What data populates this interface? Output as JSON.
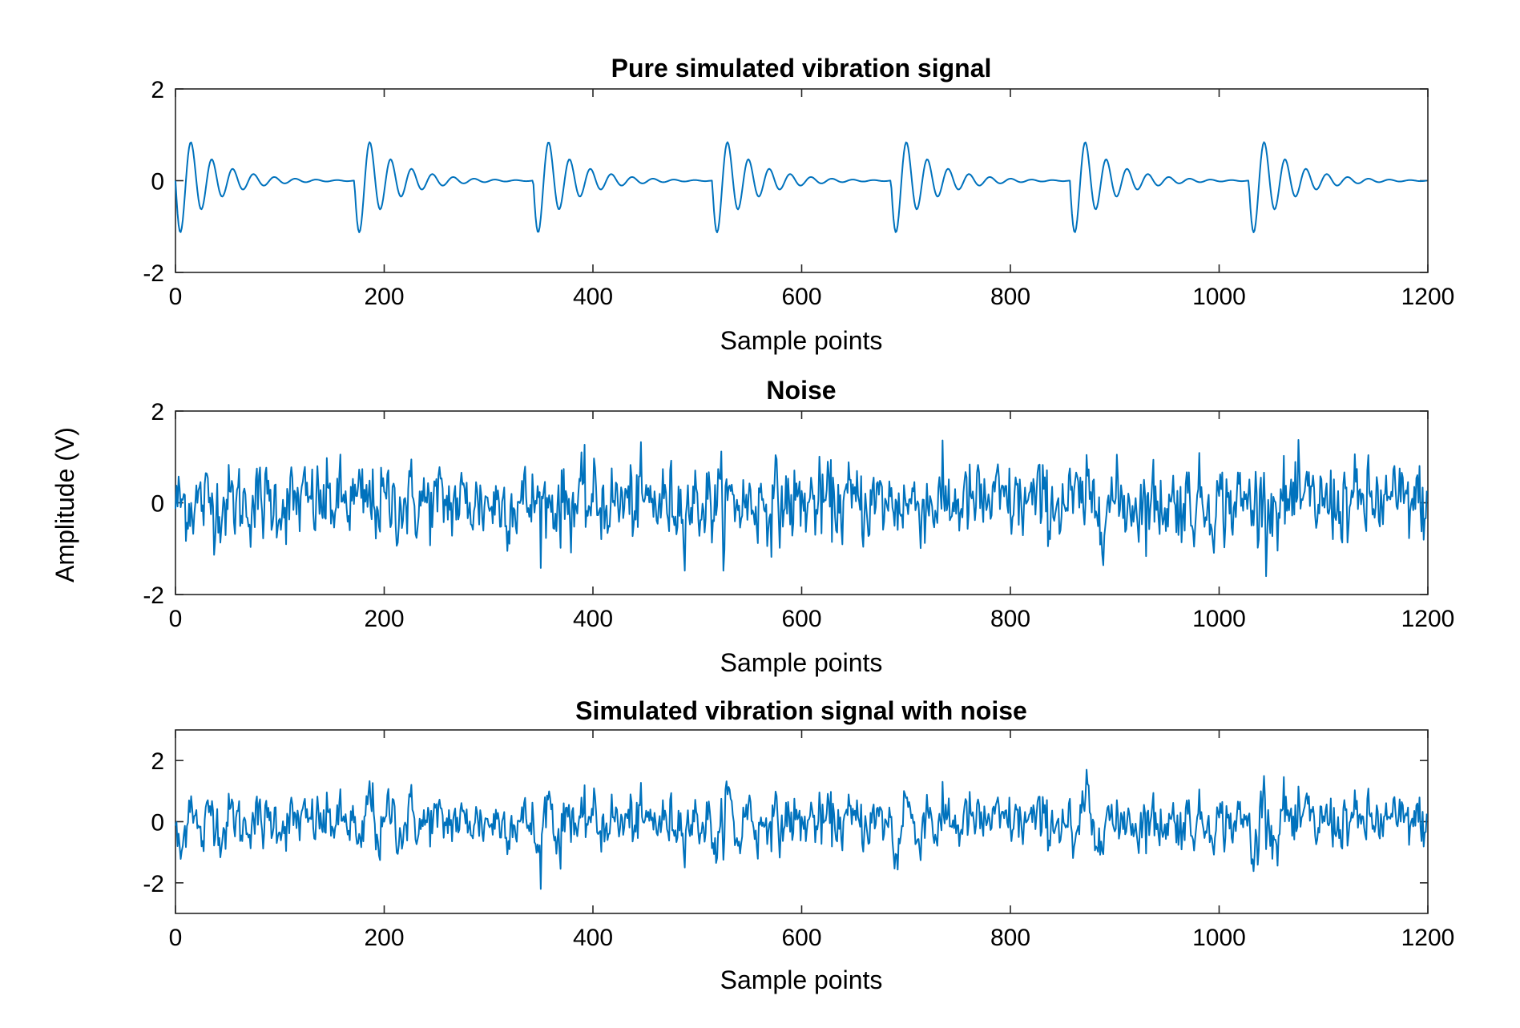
{
  "figure": {
    "shared_ylabel": "Amplitude (V)",
    "line_color": "#0072BD"
  },
  "chart_data": [
    {
      "type": "line",
      "title": "Pure simulated vibration signal",
      "xlabel": "Sample points",
      "ylabel": "Amplitude (V)",
      "xlim": [
        0,
        1200
      ],
      "ylim": [
        -2,
        2
      ],
      "xticks": [
        0,
        200,
        400,
        600,
        800,
        1000,
        1200
      ],
      "yticks": [
        -2,
        0,
        2
      ],
      "signal": {
        "kind": "periodic-damped-impulses",
        "period": 171.4,
        "impulse_times": [
          0,
          171.4,
          342.8,
          514.2,
          685.6,
          857.0,
          1028.4
        ],
        "peak_amplitude": 1.3,
        "min_value": -1.3,
        "max_value": 1.05,
        "oscillation_period_samples": 20,
        "points": 1200
      }
    },
    {
      "type": "line",
      "title": "Noise",
      "xlabel": "Sample points",
      "ylabel": "Amplitude (V)",
      "xlim": [
        0,
        1200
      ],
      "ylim": [
        -2,
        2
      ],
      "xticks": [
        0,
        200,
        400,
        600,
        800,
        1000,
        1200
      ],
      "yticks": [
        -2,
        0,
        2
      ],
      "signal": {
        "kind": "random-noise",
        "std": 0.5,
        "min_value": -1.6,
        "max_value": 1.6,
        "points": 1200
      }
    },
    {
      "type": "line",
      "title": "Simulated vibration signal with noise",
      "xlabel": "Sample points",
      "ylabel": "Amplitude (V)",
      "xlim": [
        0,
        1200
      ],
      "ylim": [
        -3,
        3
      ],
      "xticks": [
        0,
        200,
        400,
        600,
        800,
        1000,
        1200
      ],
      "yticks": [
        -2,
        0,
        2
      ],
      "signal": {
        "kind": "sum-of-above",
        "min_value": -2.2,
        "max_value": 1.7,
        "points": 1200
      }
    }
  ]
}
